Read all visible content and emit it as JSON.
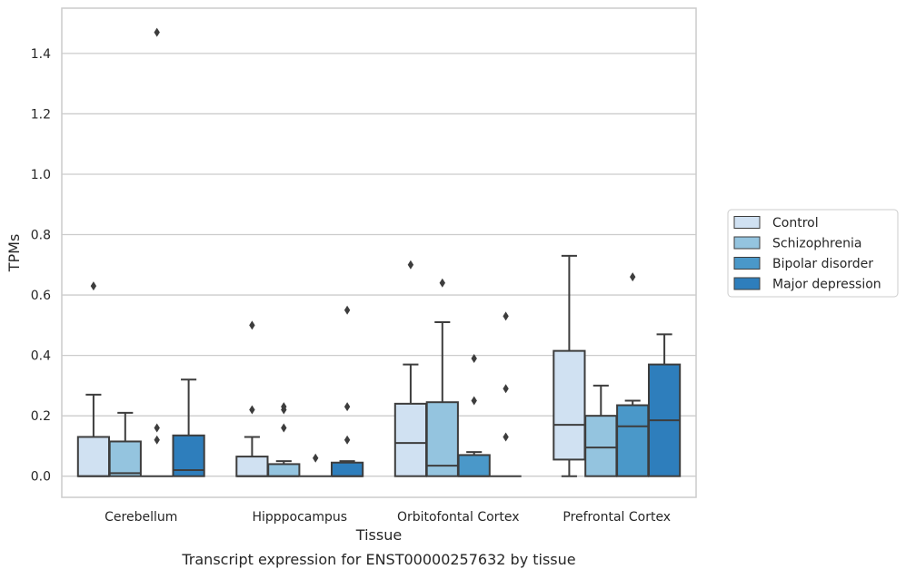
{
  "chart_data": {
    "type": "boxplot",
    "caption": "Transcript expression for ENST00000257632 by tissue",
    "xlabel": "Tissue",
    "ylabel": "TPMs",
    "ylim": [
      -0.07,
      1.55
    ],
    "yticks": [
      0.0,
      0.2,
      0.4,
      0.6,
      0.8,
      1.0,
      1.2,
      1.4
    ],
    "ytick_labels": [
      "0.0",
      "0.2",
      "0.4",
      "0.6",
      "0.8",
      "1.0",
      "1.2",
      "1.4"
    ],
    "grid": "horizontal",
    "legend_position": "right",
    "categories": [
      "Cerebellum",
      "Hipppocampus",
      "Orbitofontal Cortex",
      "Prefrontal Cortex"
    ],
    "series": [
      {
        "name": "Control",
        "color": "#d0e1f2",
        "boxes": [
          {
            "q1": 0.0,
            "median": 0.0,
            "q3": 0.13,
            "whislo": 0.0,
            "whishi": 0.27,
            "fliers": [
              0.63
            ]
          },
          {
            "q1": 0.0,
            "median": 0.0,
            "q3": 0.065,
            "whislo": 0.0,
            "whishi": 0.13,
            "fliers": [
              0.22,
              0.5
            ]
          },
          {
            "q1": 0.0,
            "median": 0.11,
            "q3": 0.24,
            "whislo": 0.0,
            "whishi": 0.37,
            "fliers": [
              0.7
            ]
          },
          {
            "q1": 0.055,
            "median": 0.17,
            "q3": 0.415,
            "whislo": 0.0,
            "whishi": 0.73,
            "fliers": []
          }
        ]
      },
      {
        "name": "Schizophrenia",
        "color": "#94c4df",
        "boxes": [
          {
            "q1": 0.0,
            "median": 0.01,
            "q3": 0.115,
            "whislo": 0.0,
            "whishi": 0.21,
            "fliers": []
          },
          {
            "q1": 0.0,
            "median": 0.0,
            "q3": 0.04,
            "whislo": 0.0,
            "whishi": 0.05,
            "fliers": [
              0.16,
              0.22,
              0.23
            ]
          },
          {
            "q1": 0.0,
            "median": 0.035,
            "q3": 0.245,
            "whislo": 0.0,
            "whishi": 0.51,
            "fliers": [
              0.64
            ]
          },
          {
            "q1": 0.0,
            "median": 0.095,
            "q3": 0.2,
            "whislo": 0.0,
            "whishi": 0.3,
            "fliers": []
          }
        ]
      },
      {
        "name": "Bipolar disorder",
        "color": "#4a98c9",
        "boxes": [
          {
            "q1": 0.0,
            "median": 0.0,
            "q3": 0.0,
            "whislo": 0.0,
            "whishi": 0.0,
            "fliers": [
              0.12,
              0.16,
              1.47
            ]
          },
          {
            "q1": 0.0,
            "median": 0.0,
            "q3": 0.0,
            "whislo": 0.0,
            "whishi": 0.0,
            "fliers": [
              0.06
            ]
          },
          {
            "q1": 0.0,
            "median": 0.0,
            "q3": 0.07,
            "whislo": 0.0,
            "whishi": 0.08,
            "fliers": [
              0.25,
              0.39
            ]
          },
          {
            "q1": 0.0,
            "median": 0.165,
            "q3": 0.235,
            "whislo": 0.0,
            "whishi": 0.25,
            "fliers": [
              0.66
            ]
          }
        ]
      },
      {
        "name": "Major depression",
        "color": "#2e7ebc",
        "boxes": [
          {
            "q1": 0.0,
            "median": 0.02,
            "q3": 0.135,
            "whislo": 0.0,
            "whishi": 0.32,
            "fliers": []
          },
          {
            "q1": 0.0,
            "median": 0.0,
            "q3": 0.045,
            "whislo": 0.0,
            "whishi": 0.05,
            "fliers": [
              0.12,
              0.23,
              0.55
            ]
          },
          {
            "q1": 0.0,
            "median": 0.0,
            "q3": 0.0,
            "whislo": 0.0,
            "whishi": 0.0,
            "fliers": [
              0.13,
              0.29,
              0.53
            ]
          },
          {
            "q1": 0.0,
            "median": 0.185,
            "q3": 0.37,
            "whislo": 0.0,
            "whishi": 0.47,
            "fliers": []
          }
        ]
      }
    ]
  }
}
